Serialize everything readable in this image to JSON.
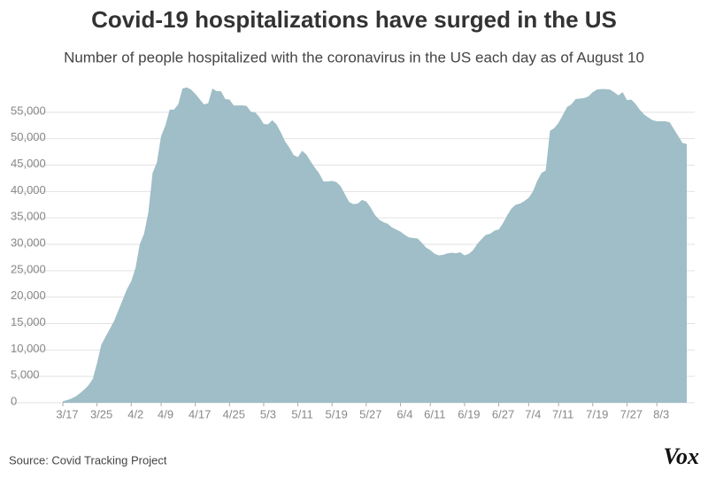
{
  "chart_data": {
    "type": "area",
    "title": "Covid-19 hospitalizations have surged in the US",
    "subtitle": "Number of people hospitalized with the coronavirus in the US each day as of August 10",
    "source": "Source: Covid Tracking Project",
    "logo": "Vox",
    "color": "#9fbec7",
    "grid": true,
    "ylim": [
      0,
      60000
    ],
    "yticks": [
      0,
      {
        "value": 5000,
        "label": "5,000"
      },
      {
        "value": 10000,
        "label": "10,000"
      },
      {
        "value": 15000,
        "label": "15,000"
      },
      {
        "value": 20000,
        "label": "20,000"
      },
      {
        "value": 25000,
        "label": "25,000"
      },
      {
        "value": 30000,
        "label": "30,000"
      },
      {
        "value": 35000,
        "label": "35,000"
      },
      {
        "value": 40000,
        "label": "40,000"
      },
      {
        "value": 45000,
        "label": "45,000"
      },
      {
        "value": 50000,
        "label": "50,000"
      },
      {
        "value": 55000,
        "label": "55,000"
      }
    ],
    "categories": [
      "3/17",
      null,
      null,
      null,
      null,
      null,
      null,
      null,
      "3/25",
      null,
      null,
      null,
      null,
      null,
      null,
      null,
      "4/2",
      null,
      null,
      null,
      null,
      null,
      null,
      "4/9",
      null,
      null,
      null,
      null,
      null,
      null,
      null,
      "4/17",
      null,
      null,
      null,
      null,
      null,
      null,
      null,
      "4/25",
      null,
      null,
      null,
      null,
      null,
      null,
      null,
      "5/3",
      null,
      null,
      null,
      null,
      null,
      null,
      null,
      "5/11",
      null,
      null,
      null,
      null,
      null,
      null,
      null,
      "5/19",
      null,
      null,
      null,
      null,
      null,
      null,
      null,
      "5/27",
      null,
      null,
      null,
      null,
      null,
      null,
      null,
      "6/4",
      null,
      null,
      null,
      null,
      null,
      null,
      "6/11",
      null,
      null,
      null,
      null,
      null,
      null,
      null,
      "6/19",
      null,
      null,
      null,
      null,
      null,
      null,
      null,
      "6/27",
      null,
      null,
      null,
      null,
      null,
      null,
      "7/4",
      null,
      null,
      null,
      null,
      null,
      null,
      "7/11",
      null,
      null,
      null,
      null,
      null,
      null,
      null,
      "7/19",
      null,
      null,
      null,
      null,
      null,
      null,
      null,
      "7/27",
      null,
      null,
      null,
      null,
      null,
      null,
      "8/3",
      null,
      null,
      null,
      null,
      null,
      null,
      null
    ],
    "values": [
      300,
      500,
      800,
      1200,
      1800,
      2500,
      3300,
      4500,
      7500,
      11000,
      12500,
      14000,
      15500,
      17500,
      19500,
      21500,
      23000,
      25500,
      30000,
      32000,
      36000,
      43500,
      45500,
      50500,
      52500,
      55500,
      55500,
      56500,
      59500,
      59700,
      59300,
      58500,
      57500,
      56500,
      56700,
      59500,
      59000,
      59000,
      57500,
      57400,
      56300,
      56300,
      56300,
      56200,
      55100,
      55000,
      54100,
      52800,
      52700,
      53500,
      52700,
      51200,
      49500,
      48300,
      46900,
      46500,
      47700,
      47000,
      45700,
      44500,
      43400,
      41900,
      41900,
      42000,
      41800,
      41000,
      39500,
      38000,
      37600,
      37700,
      38400,
      38100,
      37000,
      35600,
      34700,
      34200,
      33900,
      33200,
      32800,
      32400,
      31800,
      31300,
      31200,
      31100,
      30300,
      29400,
      28900,
      28200,
      27900,
      28000,
      28300,
      28400,
      28300,
      28500,
      27900,
      28200,
      28900,
      30100,
      31000,
      31800,
      32000,
      32600,
      32800,
      34000,
      35500,
      36800,
      37500,
      37700,
      38200,
      38800,
      40000,
      42000,
      43500,
      44000,
      51500,
      52000,
      53000,
      54500,
      56000,
      56500,
      57500,
      57600,
      57700,
      58000,
      58800,
      59300,
      59400,
      59400,
      59300,
      58800,
      58200,
      58800,
      57300,
      57400,
      56600,
      55500,
      54600,
      54000,
      53500,
      53300,
      53300,
      53300,
      53100,
      51800,
      50500,
      49200,
      49000
    ]
  }
}
